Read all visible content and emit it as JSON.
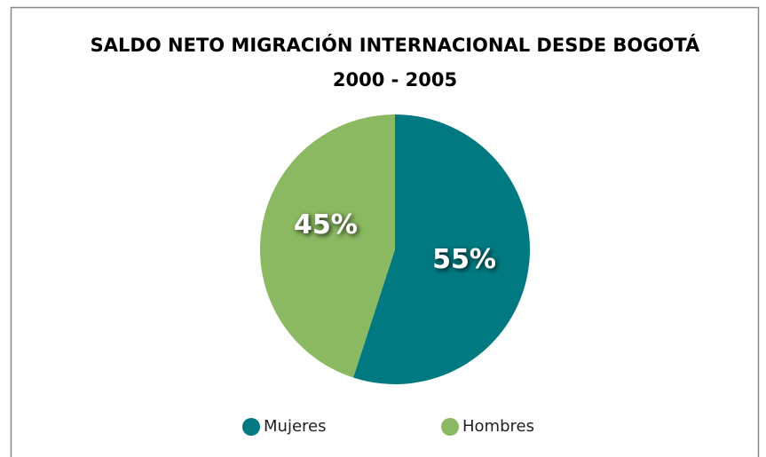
{
  "chart_data": {
    "type": "pie",
    "title": "SALDO NETO MIGRACIÓN INTERNACIONAL DESDE BOGOTÁ",
    "subtitle": "2000 - 2005",
    "categories": [
      "Mujeres",
      "Hombres"
    ],
    "values": [
      55,
      45
    ],
    "value_labels": [
      "55%",
      "45%"
    ],
    "colors": [
      "#007a80",
      "#8ab961"
    ],
    "legend": "bottom"
  }
}
